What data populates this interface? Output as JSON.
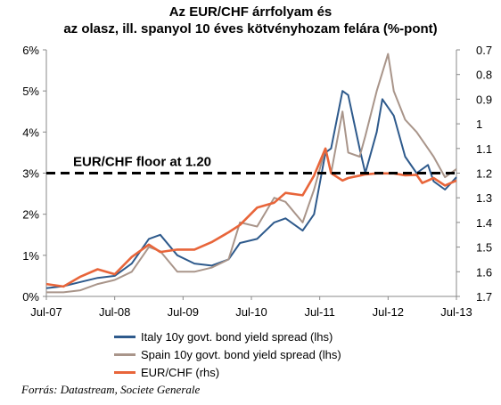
{
  "chart_data": {
    "type": "line",
    "title_line1": "Az EUR/CHF árrfolyam és",
    "title_line2": "az olasz, ill. spanyol 10 éves kötvényhozam felára (%-pont)",
    "x_ticks": [
      "Jul-07",
      "Jul-08",
      "Jul-09",
      "Jul-10",
      "Jul-11",
      "Jul-12",
      "Jul-13"
    ],
    "x_range": [
      "2007-07",
      "2013-07"
    ],
    "y_left": {
      "ticks": [
        "0%",
        "1%",
        "2%",
        "3%",
        "4%",
        "5%",
        "6%"
      ],
      "range": [
        0,
        6
      ]
    },
    "y_right": {
      "ticks": [
        "0.7",
        "0.8",
        "0.9",
        "1",
        "1.1",
        "1.2",
        "1.3",
        "1.4",
        "1.5",
        "1.6",
        "1.7"
      ],
      "range": [
        0.7,
        1.7
      ],
      "inverted": true
    },
    "annotation": {
      "label": "EUR/CHF floor at 1.20",
      "value": 1.2,
      "axis": "rhs"
    },
    "series": [
      {
        "name": "Italy 10y govt. bond yield spread (lhs)",
        "axis": "lhs",
        "color": "#2e5a8c",
        "points": [
          [
            "2007-07",
            0.2
          ],
          [
            "2007-10",
            0.25
          ],
          [
            "2008-01",
            0.35
          ],
          [
            "2008-04",
            0.45
          ],
          [
            "2008-07",
            0.5
          ],
          [
            "2008-10",
            0.8
          ],
          [
            "2009-01",
            1.4
          ],
          [
            "2009-03",
            1.5
          ],
          [
            "2009-06",
            1.0
          ],
          [
            "2009-09",
            0.8
          ],
          [
            "2009-12",
            0.75
          ],
          [
            "2010-03",
            0.9
          ],
          [
            "2010-05",
            1.3
          ],
          [
            "2010-08",
            1.4
          ],
          [
            "2010-11",
            1.8
          ],
          [
            "2011-01",
            1.9
          ],
          [
            "2011-04",
            1.6
          ],
          [
            "2011-06",
            2.0
          ],
          [
            "2011-08",
            3.5
          ],
          [
            "2011-09",
            3.6
          ],
          [
            "2011-11",
            5.0
          ],
          [
            "2011-12",
            4.9
          ],
          [
            "2012-02",
            3.6
          ],
          [
            "2012-03",
            3.0
          ],
          [
            "2012-05",
            4.0
          ],
          [
            "2012-06",
            4.8
          ],
          [
            "2012-08",
            4.4
          ],
          [
            "2012-10",
            3.4
          ],
          [
            "2012-12",
            3.0
          ],
          [
            "2013-02",
            3.2
          ],
          [
            "2013-03",
            2.8
          ],
          [
            "2013-05",
            2.6
          ],
          [
            "2013-07",
            2.9
          ]
        ]
      },
      {
        "name": "Spain 10y govt. bond yield spread (lhs)",
        "axis": "lhs",
        "color": "#a9958a",
        "points": [
          [
            "2007-07",
            0.1
          ],
          [
            "2007-10",
            0.1
          ],
          [
            "2008-01",
            0.15
          ],
          [
            "2008-04",
            0.3
          ],
          [
            "2008-07",
            0.4
          ],
          [
            "2008-10",
            0.6
          ],
          [
            "2009-01",
            1.2
          ],
          [
            "2009-03",
            1.1
          ],
          [
            "2009-06",
            0.6
          ],
          [
            "2009-09",
            0.6
          ],
          [
            "2009-12",
            0.7
          ],
          [
            "2010-03",
            0.9
          ],
          [
            "2010-05",
            1.8
          ],
          [
            "2010-08",
            1.7
          ],
          [
            "2010-11",
            2.4
          ],
          [
            "2011-01",
            2.3
          ],
          [
            "2011-04",
            1.8
          ],
          [
            "2011-06",
            2.6
          ],
          [
            "2011-08",
            3.6
          ],
          [
            "2011-09",
            3.0
          ],
          [
            "2011-11",
            4.5
          ],
          [
            "2011-12",
            3.5
          ],
          [
            "2012-02",
            3.4
          ],
          [
            "2012-03",
            3.9
          ],
          [
            "2012-05",
            5.0
          ],
          [
            "2012-07",
            5.9
          ],
          [
            "2012-08",
            5.0
          ],
          [
            "2012-10",
            4.3
          ],
          [
            "2012-12",
            4.0
          ],
          [
            "2013-02",
            3.6
          ],
          [
            "2013-03",
            3.4
          ],
          [
            "2013-05",
            2.9
          ],
          [
            "2013-07",
            3.1
          ]
        ]
      },
      {
        "name": "EUR/CHF  (rhs)",
        "axis": "rhs",
        "color": "#e8653a",
        "points": [
          [
            "2007-07",
            1.65
          ],
          [
            "2007-10",
            1.66
          ],
          [
            "2008-01",
            1.62
          ],
          [
            "2008-04",
            1.59
          ],
          [
            "2008-07",
            1.61
          ],
          [
            "2008-10",
            1.54
          ],
          [
            "2009-01",
            1.49
          ],
          [
            "2009-03",
            1.52
          ],
          [
            "2009-06",
            1.51
          ],
          [
            "2009-09",
            1.51
          ],
          [
            "2009-12",
            1.48
          ],
          [
            "2010-03",
            1.44
          ],
          [
            "2010-05",
            1.41
          ],
          [
            "2010-08",
            1.34
          ],
          [
            "2010-11",
            1.32
          ],
          [
            "2011-01",
            1.28
          ],
          [
            "2011-04",
            1.29
          ],
          [
            "2011-06",
            1.21
          ],
          [
            "2011-08",
            1.1
          ],
          [
            "2011-09",
            1.2
          ],
          [
            "2011-11",
            1.23
          ],
          [
            "2011-12",
            1.22
          ],
          [
            "2012-02",
            1.21
          ],
          [
            "2012-03",
            1.205
          ],
          [
            "2012-05",
            1.201
          ],
          [
            "2012-07",
            1.201
          ],
          [
            "2012-08",
            1.201
          ],
          [
            "2012-10",
            1.209
          ],
          [
            "2012-12",
            1.207
          ],
          [
            "2013-01",
            1.24
          ],
          [
            "2013-02",
            1.23
          ],
          [
            "2013-03",
            1.22
          ],
          [
            "2013-05",
            1.25
          ],
          [
            "2013-07",
            1.23
          ]
        ]
      }
    ]
  },
  "source": "Forrás: Datastream, Societe Generale"
}
